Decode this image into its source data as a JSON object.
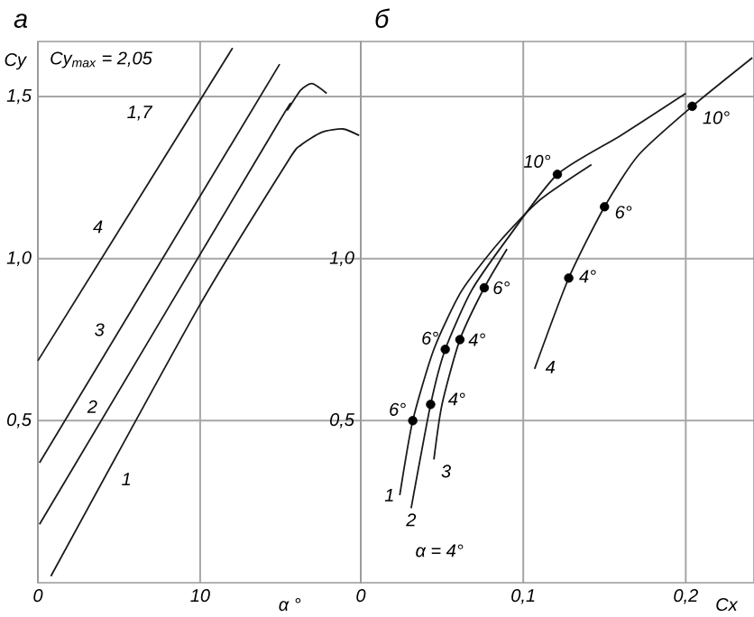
{
  "chart_data": [
    {
      "type": "line",
      "title": "a",
      "xlabel": "α °",
      "ylabel": "Cy",
      "xlim": [
        0,
        19.9
      ],
      "ylim": [
        0,
        1.67
      ],
      "xticks": [
        0,
        10
      ],
      "yticks": [
        {
          "value": 0.5,
          "label": "0,5"
        },
        {
          "value": 1.0,
          "label": "1,0"
        },
        {
          "value": 1.5,
          "label": "1,5"
        }
      ],
      "grid": true,
      "series": [
        {
          "name": "1",
          "color": "#1a1a1a",
          "x": [
            0.8,
            9.9,
            15.4,
            16.2,
            17.5,
            18.8,
            19.8
          ],
          "values": [
            0.02,
            0.85,
            1.3,
            1.35,
            1.39,
            1.4,
            1.38
          ]
        },
        {
          "name": "2",
          "color": "#1a1a1a",
          "x": [
            0.1,
            14.6,
            15.4,
            16.2,
            16.9,
            17.8
          ],
          "values": [
            0.18,
            1.4,
            1.46,
            1.52,
            1.54,
            1.51
          ]
        },
        {
          "name": "3",
          "color": "#1a1a1a",
          "x": [
            0.1,
            14.9
          ],
          "values": [
            0.37,
            1.6
          ]
        },
        {
          "name": "4",
          "color": "#1a1a1a",
          "x": [
            0,
            12.0
          ],
          "values": [
            0.685,
            1.65
          ]
        }
      ],
      "annotations": [
        "Cy$_{max}$ = 2,05",
        "1,7"
      ]
    },
    {
      "type": "line",
      "title": "б",
      "xlabel": "Cx",
      "xlim": [
        0,
        0.242
      ],
      "ylim": [
        0,
        1.67
      ],
      "xticks": [
        0,
        {
          "value": 0.1,
          "label": "0,1"
        },
        {
          "value": 0.2,
          "label": "0,2"
        }
      ],
      "yticks": [
        {
          "value": 0.5,
          "label": "0,5"
        },
        {
          "value": 1.0,
          "label": "1,0"
        },
        {
          "value": 1.5,
          "label": null
        }
      ],
      "grid": true,
      "series": [
        {
          "name": "1",
          "color": "#1a1a1a",
          "x": [
            0.024,
            0.032,
            0.045,
            0.062,
            0.085,
            0.11,
            0.142
          ],
          "values": [
            0.27,
            0.5,
            0.72,
            0.9,
            1.05,
            1.18,
            1.29
          ]
        },
        {
          "name": "2",
          "color": "#1a1a1a",
          "x": [
            0.031,
            0.043,
            0.052,
            0.068,
            0.09,
            0.121,
            0.16,
            0.2
          ],
          "values": [
            0.23,
            0.55,
            0.72,
            0.9,
            1.06,
            1.26,
            1.38,
            1.51
          ]
        },
        {
          "name": "3",
          "color": "#1a1a1a",
          "x": [
            0.045,
            0.05,
            0.061,
            0.076,
            0.09
          ],
          "values": [
            0.38,
            0.55,
            0.75,
            0.91,
            1.03
          ]
        },
        {
          "name": "4",
          "color": "#1a1a1a",
          "x": [
            0.107,
            0.128,
            0.15,
            0.171,
            0.204,
            0.241
          ],
          "values": [
            0.66,
            0.94,
            1.16,
            1.32,
            1.47,
            1.62
          ]
        },
        {
          "type": "scatter",
          "marker": "circle",
          "color": "#000000",
          "x": [
            0.032,
            0.043,
            0.052,
            0.061,
            0.076,
            0.121,
            0.128,
            0.15,
            0.204
          ],
          "values": [
            0.5,
            0.55,
            0.72,
            0.75,
            0.91,
            1.26,
            0.94,
            1.16,
            1.47
          ]
        }
      ],
      "annotations": [
        "α = 4°",
        {
          "text": "6°",
          "x": 0.032,
          "y": 0.5
        },
        {
          "text": "4°",
          "x": 0.043,
          "y": 0.55
        },
        {
          "text": "6°",
          "x": 0.052,
          "y": 0.72
        },
        {
          "text": "4°",
          "x": 0.061,
          "y": 0.75
        },
        {
          "text": "6°",
          "x": 0.076,
          "y": 0.91
        },
        {
          "text": "10°",
          "x": 0.121,
          "y": 1.26
        },
        {
          "text": "4°",
          "x": 0.128,
          "y": 0.94
        },
        {
          "text": "6°",
          "x": 0.15,
          "y": 1.16
        },
        {
          "text": "10°",
          "x": 0.204,
          "y": 1.47
        }
      ]
    }
  ]
}
